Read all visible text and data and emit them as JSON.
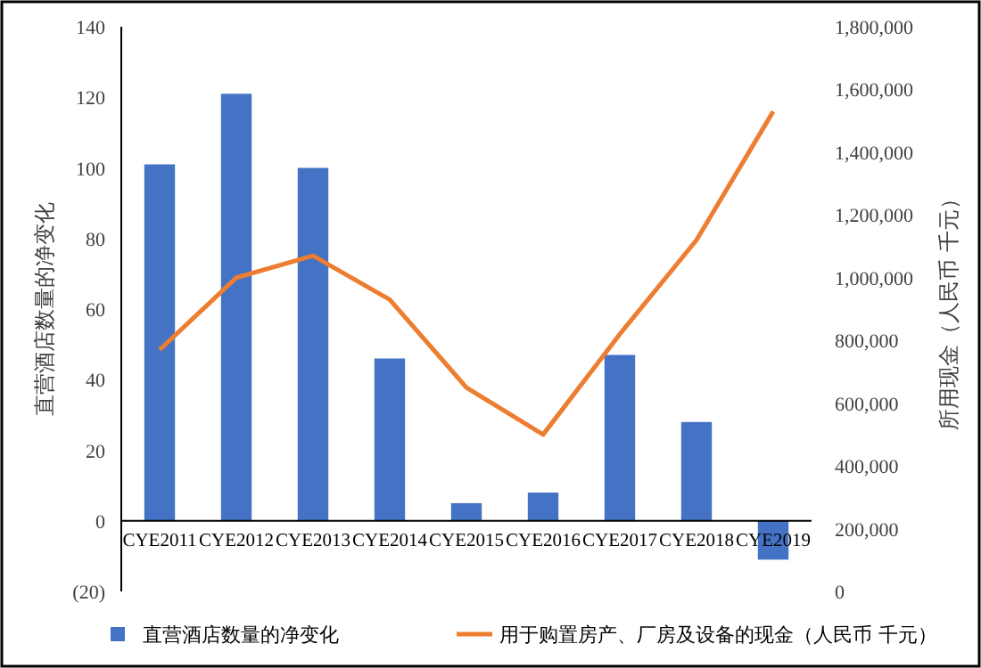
{
  "chart_data": {
    "type": "bar",
    "categories": [
      "CYE2011",
      "CYE2012",
      "CYE2013",
      "CYE2014",
      "CYE2015",
      "CYE2016",
      "CYE2017",
      "CYE2018",
      "CYE2019"
    ],
    "series": [
      {
        "name": "直营酒店数量的净变化",
        "type": "bar",
        "color": "#4472c4",
        "values": [
          101,
          121,
          100,
          46,
          5,
          8,
          47,
          28,
          -11
        ]
      },
      {
        "name": "用于购置房产、厂房及设备的现金（人民币 千元）",
        "type": "line",
        "axis": "y2",
        "color": "#ed7d31",
        "values": [
          770000,
          1000000,
          1070000,
          930000,
          650000,
          500000,
          820000,
          1120000,
          1530000
        ]
      }
    ],
    "ylabel": "直营酒店数量的净变化",
    "y2label": "所用现金（人民币 千元）",
    "ylim": [
      -20,
      140
    ],
    "yticks": [
      {
        "value": -20,
        "label": "(20)"
      },
      0,
      20,
      40,
      60,
      80,
      100,
      120,
      140
    ],
    "y2lim": [
      0,
      1800000
    ],
    "y2ticks": [
      {
        "value": 0,
        "label": "0"
      },
      {
        "value": 200000,
        "label": "200,000"
      },
      {
        "value": 400000,
        "label": "400,000"
      },
      {
        "value": 600000,
        "label": "600,000"
      },
      {
        "value": 800000,
        "label": "800,000"
      },
      {
        "value": 1000000,
        "label": "1,000,000"
      },
      {
        "value": 1200000,
        "label": "1,200,000"
      },
      {
        "value": 1400000,
        "label": "1,400,000"
      },
      {
        "value": 1600000,
        "label": "1,600,000"
      },
      {
        "value": 1800000,
        "label": "1,800,000"
      }
    ],
    "legend": "bottom",
    "grid": false
  }
}
